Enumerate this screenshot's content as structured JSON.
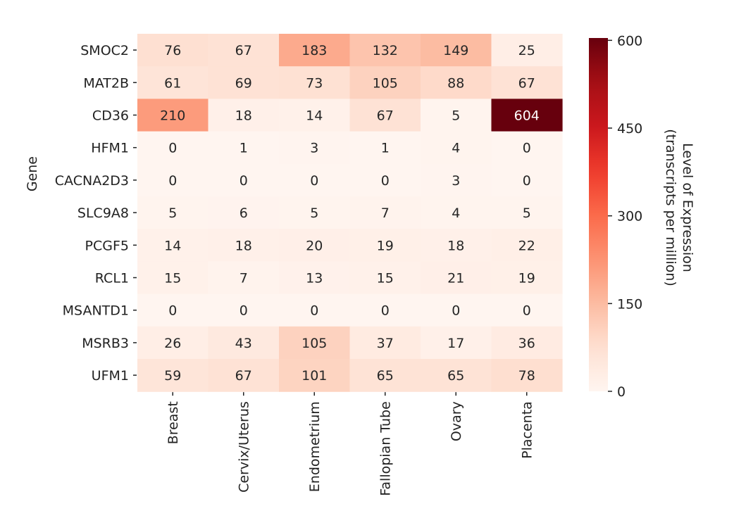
{
  "chart_data": {
    "type": "heatmap",
    "ylabel": "Gene",
    "xlabel": "",
    "rows": [
      "SMOC2",
      "MAT2B",
      "CD36",
      "HFM1",
      "CACNA2D3",
      "SLC9A8",
      "PCGF5",
      "RCL1",
      "MSANTD1",
      "MSRB3",
      "UFM1"
    ],
    "columns": [
      "Breast",
      "Cervix/Uterus",
      "Endometrium",
      "Fallopian Tube",
      "Ovary",
      "Placenta"
    ],
    "values": [
      [
        76,
        67,
        183,
        132,
        149,
        25
      ],
      [
        61,
        69,
        73,
        105,
        88,
        67
      ],
      [
        210,
        18,
        14,
        67,
        5,
        604
      ],
      [
        0,
        1,
        3,
        1,
        4,
        0
      ],
      [
        0,
        0,
        0,
        0,
        3,
        0
      ],
      [
        5,
        6,
        5,
        7,
        4,
        5
      ],
      [
        14,
        18,
        20,
        19,
        18,
        22
      ],
      [
        15,
        7,
        13,
        15,
        21,
        19
      ],
      [
        0,
        0,
        0,
        0,
        0,
        0
      ],
      [
        26,
        43,
        105,
        37,
        17,
        36
      ],
      [
        59,
        67,
        101,
        65,
        65,
        78
      ]
    ],
    "colorbar": {
      "label_line1": "Level of Expression",
      "label_line2": "(transcripts per million)",
      "range": [
        0,
        604
      ],
      "ticks": [
        0,
        150,
        300,
        450,
        600
      ],
      "colormap": "Reds"
    }
  }
}
